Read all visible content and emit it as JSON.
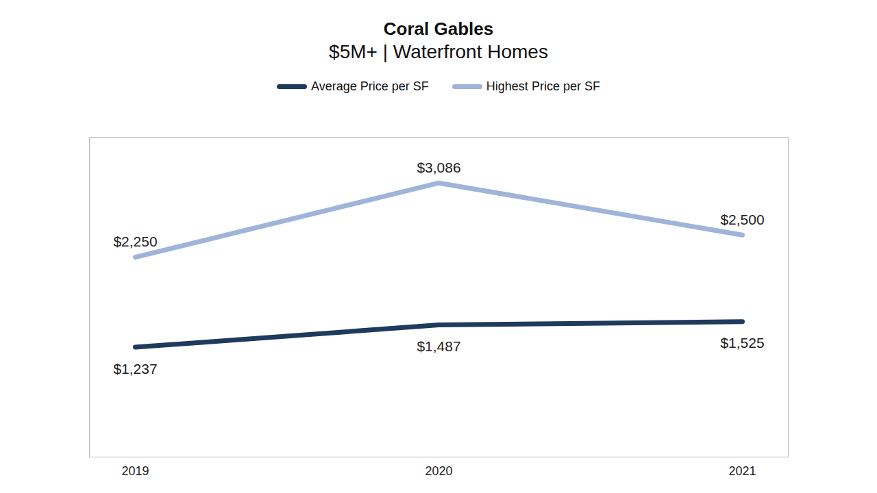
{
  "chart_data": {
    "type": "line",
    "title": "Coral Gables",
    "subtitle": "$5M+ | Waterfront Homes",
    "categories": [
      "2019",
      "2020",
      "2021"
    ],
    "series": [
      {
        "name": "Average Price per SF",
        "color": "#1f3a5c",
        "values": [
          1237,
          1487,
          1525
        ],
        "value_labels": [
          "$1,237",
          "$1,487",
          "$1,525"
        ]
      },
      {
        "name": "Highest Price per SF",
        "color": "#9fb4d8",
        "values": [
          2250,
          3086,
          2500
        ],
        "value_labels": [
          "$2,250",
          "$3,086",
          "$2,500"
        ]
      }
    ],
    "ylim": [
      0,
      3600
    ],
    "yticks": [],
    "tick_labels": "x",
    "data_labels": true,
    "legend": "top",
    "grid": false
  }
}
